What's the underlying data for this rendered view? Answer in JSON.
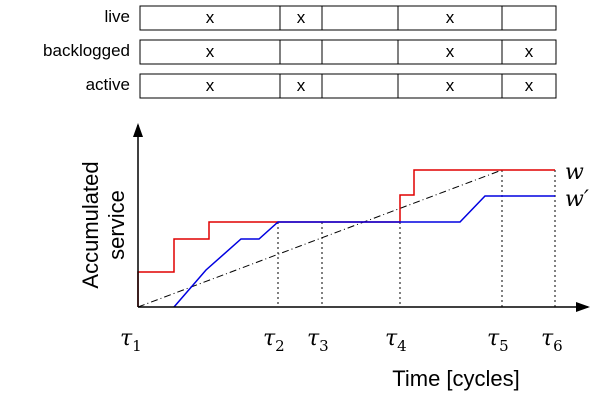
{
  "table": {
    "rows": [
      {
        "label": "live",
        "marks": [
          "x",
          "x",
          "",
          "x",
          ""
        ]
      },
      {
        "label": "backlogged",
        "marks": [
          "x",
          "",
          "",
          "x",
          "x"
        ]
      },
      {
        "label": "active",
        "marks": [
          "x",
          "x",
          "",
          "x",
          "x"
        ]
      }
    ]
  },
  "plot": {
    "y_axis_title_line1": "Accumulated",
    "y_axis_title_line2": "service",
    "x_axis_title": "Time [cycles]",
    "tau_symbol": "τ",
    "tau_subscripts": [
      "1",
      "2",
      "3",
      "4",
      "5",
      "6"
    ],
    "curve_labels": {
      "w": "w",
      "w_prime": "w′"
    },
    "colors": {
      "w": "#e00000",
      "w_prime": "#0000e0",
      "axis": "#000000"
    }
  }
}
